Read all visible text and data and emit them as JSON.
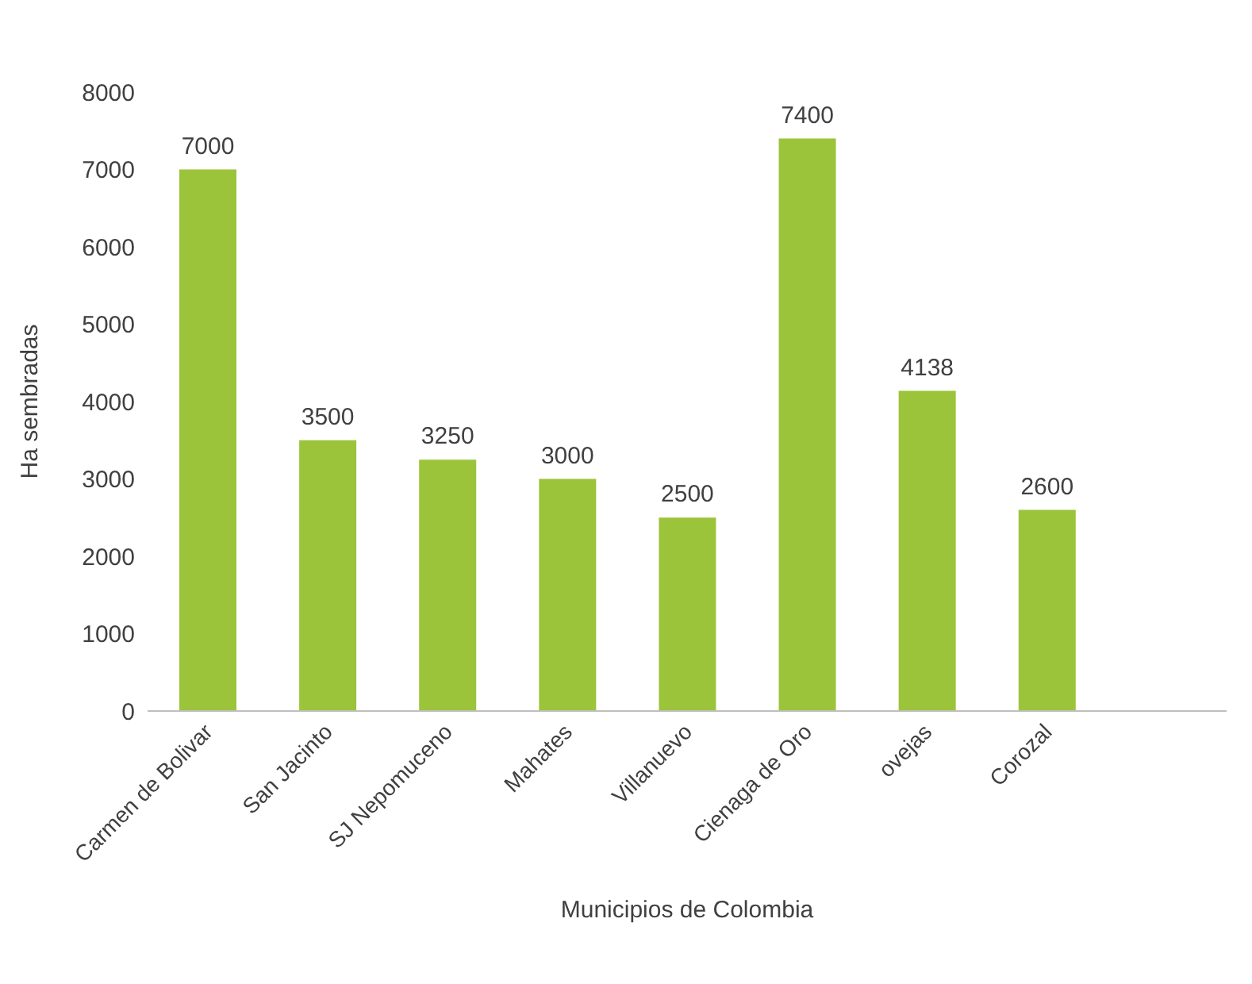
{
  "chart_data": {
    "type": "bar",
    "xlabel": "Municipios de Colombia",
    "ylabel": "Ha sembradas",
    "categories": [
      "Carmen de Bolivar",
      "San Jacinto",
      "SJ Nepomuceno",
      "Mahates",
      "Villanuevo",
      "Cienaga de Oro",
      "ovejas",
      "Corozal",
      null
    ],
    "values": [
      7000,
      3500,
      3250,
      3000,
      2500,
      7400,
      4138,
      2600,
      null
    ],
    "color": "#9bc43a",
    "ylim": [
      0,
      8000
    ],
    "yticks": [
      0,
      1000,
      2000,
      3000,
      4000,
      5000,
      6000,
      7000,
      8000
    ],
    "grid": false,
    "data_labels": true
  }
}
